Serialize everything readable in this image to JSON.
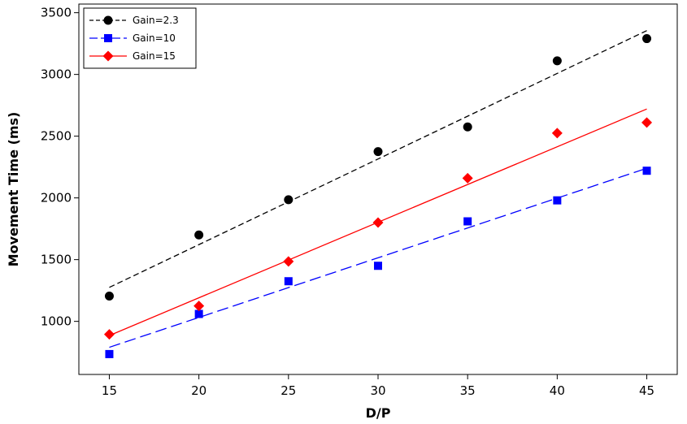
{
  "chart_data": {
    "type": "scatter",
    "xlabel": "D/P",
    "ylabel": "Movement Time (ms)",
    "xlim": [
      13.3,
      46.7
    ],
    "ylim": [
      570,
      3570
    ],
    "xticks": [
      15,
      20,
      25,
      30,
      35,
      40,
      45
    ],
    "yticks": [
      1000,
      1500,
      2000,
      2500,
      3000,
      3500
    ],
    "legend_position": "top-left",
    "series": [
      {
        "name": "Gain=2.3",
        "color": "#000000",
        "marker": "circle",
        "line_style": "dashed",
        "x": [
          15,
          20,
          25,
          30,
          35,
          40,
          45
        ],
        "y": [
          1205,
          1700,
          1985,
          2375,
          2575,
          3110,
          3290
        ],
        "fit": {
          "x": [
            15,
            45
          ],
          "y": [
            1275,
            3355
          ]
        }
      },
      {
        "name": "Gain=10",
        "color": "#0000ff",
        "marker": "square",
        "line_style": "long-dashed",
        "x": [
          15,
          20,
          25,
          30,
          35,
          40,
          45
        ],
        "y": [
          735,
          1060,
          1325,
          1450,
          1810,
          1980,
          2220
        ],
        "fit": {
          "x": [
            15,
            45
          ],
          "y": [
            790,
            2240
          ]
        }
      },
      {
        "name": "Gain=15",
        "color": "#ff0000",
        "marker": "diamond",
        "line_style": "solid",
        "x": [
          15,
          20,
          25,
          30,
          35,
          40,
          45
        ],
        "y": [
          895,
          1125,
          1485,
          1800,
          2160,
          2525,
          2610
        ],
        "fit": {
          "x": [
            15,
            45
          ],
          "y": [
            885,
            2720
          ]
        }
      }
    ]
  }
}
